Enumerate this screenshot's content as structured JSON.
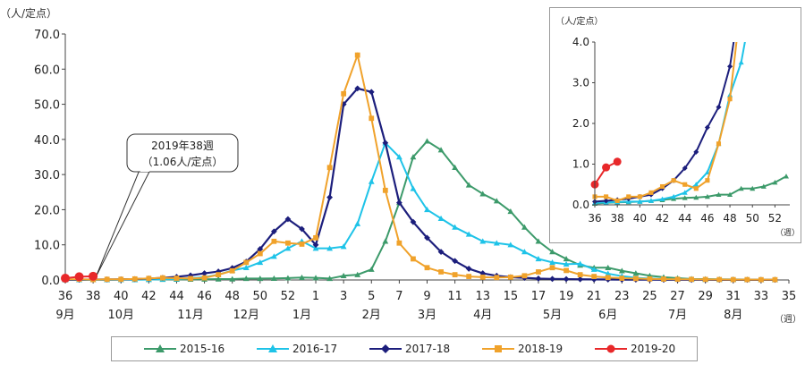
{
  "chart_data": [
    {
      "type": "line",
      "ylabel": "（人/定点）",
      "xunit": "（週）",
      "ylim": [
        0,
        70
      ],
      "yticks": [
        "0.0",
        "10.0",
        "20.0",
        "30.0",
        "40.0",
        "50.0",
        "60.0",
        "70.0"
      ],
      "week_labels": [
        "36",
        "38",
        "40",
        "42",
        "44",
        "46",
        "48",
        "50",
        "52",
        "1",
        "3",
        "5",
        "7",
        "9",
        "11",
        "13",
        "15",
        "17",
        "19",
        "21",
        "23",
        "25",
        "27",
        "29",
        "31",
        "33",
        "35"
      ],
      "month_labels": [
        "9月",
        "10月",
        "11月",
        "12月",
        "1月",
        "2月",
        "3月",
        "4月",
        "5月",
        "6月",
        "7月",
        "8月"
      ],
      "callout": [
        "2019年38週",
        "（1.06人/定点）"
      ],
      "grid": false,
      "legend": "bottom",
      "series": [
        {
          "name": "2015-16",
          "color": "#3c9a6a",
          "marker": "triangle",
          "values": [
            0.03,
            0.05,
            0.06,
            0.07,
            0.08,
            0.1,
            0.12,
            0.15,
            0.17,
            0.18,
            0.2,
            0.25,
            0.25,
            0.4,
            0.4,
            0.45,
            0.55,
            0.7,
            0.6,
            0.4,
            1.2,
            1.5,
            3,
            11,
            22,
            35,
            39.5,
            37,
            32,
            27,
            24.5,
            22.5,
            19.5,
            15,
            11,
            8,
            6,
            4.2,
            3.5,
            3.5,
            2.6,
            1.9,
            1.2,
            0.8,
            0.5,
            0.3,
            0.25,
            0.2,
            0.15,
            0.12,
            0.1,
            0.1
          ]
        },
        {
          "name": "2016-17",
          "color": "#1ec3e8",
          "marker": "triangle",
          "values": [
            0.05,
            0.06,
            0.07,
            0.08,
            0.08,
            0.1,
            0.14,
            0.2,
            0.3,
            0.5,
            0.8,
            1.5,
            2.7,
            3.5,
            5,
            6.7,
            9,
            11,
            9,
            9,
            9.5,
            16,
            28,
            39,
            35,
            26,
            20,
            17.5,
            15,
            13,
            11,
            10.5,
            10,
            8,
            6,
            5,
            4.5,
            4.6,
            3,
            1.8,
            1.1,
            0.6,
            0.4,
            0.25,
            0.2,
            0.15,
            0.12,
            0.1,
            0.08,
            0.07,
            0.06,
            0.05
          ]
        },
        {
          "name": "2017-18",
          "color": "#1c1e7c",
          "marker": "diamond",
          "values": [
            0.08,
            0.1,
            0.12,
            0.15,
            0.2,
            0.25,
            0.4,
            0.6,
            0.9,
            1.3,
            1.9,
            2.4,
            3.4,
            5.2,
            8.8,
            13.8,
            17.3,
            14.5,
            10,
            23.5,
            50,
            54.5,
            53.5,
            39,
            22,
            16.5,
            12,
            8,
            5.4,
            3.2,
            1.9,
            1.2,
            0.8,
            0.6,
            0.4,
            0.3,
            0.25,
            0.2,
            0.15,
            0.12,
            0.1,
            0.1,
            0.08,
            0.07,
            0.06,
            0.05,
            0.05,
            0.04,
            0.04,
            0.03,
            0.03,
            0.03
          ]
        },
        {
          "name": "2018-19",
          "color": "#f0a22b",
          "marker": "square",
          "values": [
            0.2,
            0.2,
            0.1,
            0.2,
            0.2,
            0.3,
            0.45,
            0.6,
            0.5,
            0.4,
            0.6,
            1.5,
            2.6,
            5,
            7.5,
            11,
            10.5,
            10.2,
            12,
            32,
            53,
            64,
            46,
            25.5,
            10.5,
            6,
            3.5,
            2.3,
            1.5,
            1,
            0.8,
            0.7,
            0.8,
            1.2,
            2.3,
            3.5,
            2.7,
            1.5,
            1,
            0.7,
            0.5,
            0.4,
            0.3,
            0.25,
            0.2,
            0.18,
            0.15,
            0.12,
            0.1,
            0.1,
            0.08,
            0.08
          ]
        },
        {
          "name": "2019-20",
          "color": "#e8282a",
          "marker": "circle",
          "values": [
            0.5,
            0.92,
            1.06
          ]
        }
      ]
    },
    {
      "type": "line",
      "role": "inset",
      "ylabel": "（人/定点）",
      "xunit": "（週）",
      "ylim": [
        0,
        4
      ],
      "yticks": [
        "0.0",
        "1.0",
        "2.0",
        "3.0",
        "4.0"
      ],
      "x_tick_labels": [
        "36",
        "38",
        "40",
        "42",
        "44",
        "46",
        "48",
        "50",
        "52"
      ]
    }
  ]
}
